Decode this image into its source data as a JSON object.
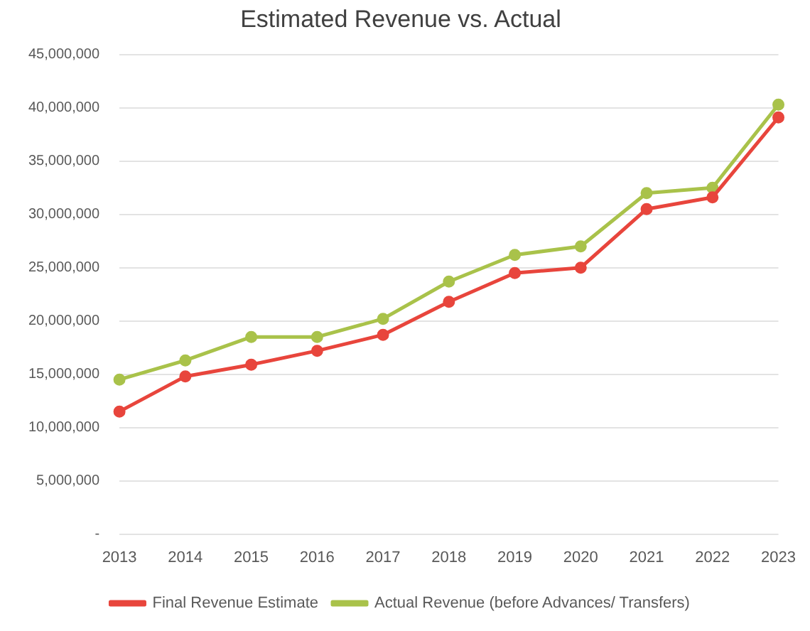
{
  "chart_data": {
    "type": "line",
    "title": "Estimated Revenue vs. Actual",
    "categories": [
      "2013",
      "2014",
      "2015",
      "2016",
      "2017",
      "2018",
      "2019",
      "2020",
      "2021",
      "2022",
      "2023"
    ],
    "series": [
      {
        "name": "Final Revenue Estimate",
        "color": "#e8453c",
        "values": [
          11500000,
          14800000,
          15900000,
          17200000,
          18700000,
          21800000,
          24500000,
          25000000,
          30500000,
          31600000,
          39100000
        ]
      },
      {
        "name": "Actual Revenue (before Advances/ Transfers)",
        "color": "#a9c24a",
        "values": [
          14500000,
          16300000,
          18500000,
          18500000,
          20200000,
          23700000,
          26200000,
          27000000,
          32000000,
          32500000,
          40300000
        ]
      }
    ],
    "ylim": [
      0,
      45000000
    ],
    "yticks": [
      {
        "value": 0,
        "label": "-"
      },
      {
        "value": 5000000,
        "label": "5,000,000"
      },
      {
        "value": 10000000,
        "label": "10,000,000"
      },
      {
        "value": 15000000,
        "label": "15,000,000"
      },
      {
        "value": 20000000,
        "label": "20,000,000"
      },
      {
        "value": 25000000,
        "label": "25,000,000"
      },
      {
        "value": 30000000,
        "label": "30,000,000"
      },
      {
        "value": 35000000,
        "label": "35,000,000"
      },
      {
        "value": 40000000,
        "label": "40,000,000"
      },
      {
        "value": 45000000,
        "label": "45,000,000"
      }
    ],
    "grid": "y",
    "legend": "bottom",
    "marker": "circle",
    "line_style": "solid"
  }
}
